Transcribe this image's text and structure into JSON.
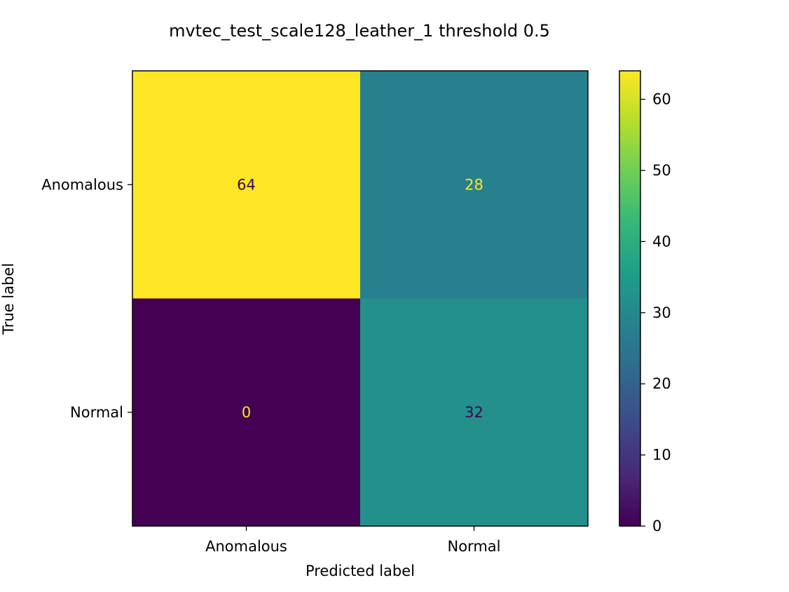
{
  "chart_data": {
    "type": "heatmap",
    "title": "mvtec_test_scale128_leather_1 threshold 0.5",
    "xlabel": "Predicted label",
    "ylabel": "True label",
    "x_categories": [
      "Anomalous",
      "Normal"
    ],
    "y_categories": [
      "Anomalous",
      "Normal"
    ],
    "values": [
      [
        64,
        28
      ],
      [
        0,
        32
      ]
    ],
    "colormap": "viridis",
    "colorbar": {
      "min": 0,
      "max": 64,
      "ticks": [
        0,
        10,
        20,
        30,
        40,
        50,
        60
      ]
    },
    "colors": {
      "viridis_stops": [
        "#440154",
        "#482878",
        "#3e4989",
        "#31688e",
        "#26828e",
        "#1f9e89",
        "#35b779",
        "#6ece58",
        "#b5de2b",
        "#fde725"
      ],
      "text_dark": "#440154",
      "text_light": "#fde725"
    }
  }
}
